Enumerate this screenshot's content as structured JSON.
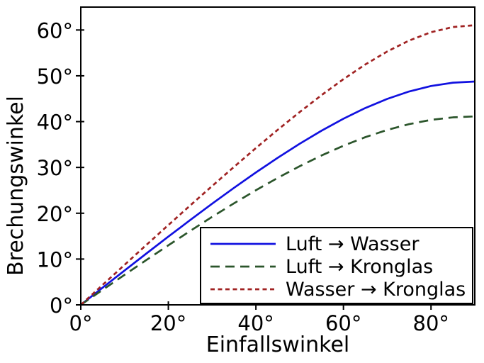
{
  "figure": {
    "background": "#ffffff",
    "frame_color": "#000000",
    "text_color": "#000000"
  },
  "chart_data": {
    "type": "line",
    "title": "",
    "xlabel": "Einfallswinkel",
    "ylabel": "Brechungswinkel",
    "xlim": [
      0,
      90
    ],
    "ylim": [
      0,
      65
    ],
    "x_ticks": [
      0,
      20,
      40,
      60,
      80
    ],
    "y_ticks": [
      0,
      10,
      20,
      30,
      40,
      50,
      60
    ],
    "tick_suffix": "°",
    "grid": false,
    "legend_position": "lower right",
    "x": [
      0,
      5,
      10,
      15,
      20,
      25,
      30,
      35,
      40,
      45,
      50,
      55,
      60,
      65,
      70,
      75,
      80,
      85,
      90
    ],
    "series": [
      {
        "name": "Luft → Wasser",
        "color": "#1111e0",
        "dash": null,
        "values": [
          0,
          3.76,
          7.5,
          11.22,
          14.9,
          18.52,
          22.08,
          25.55,
          28.9,
          32.12,
          35.17,
          38.02,
          40.63,
          42.97,
          44.96,
          46.58,
          47.77,
          48.5,
          48.75
        ]
      },
      {
        "name": "Luft → Kronglas",
        "color": "#2b552b",
        "dash": [
          13,
          8
        ],
        "values": [
          0,
          3.29,
          6.56,
          9.8,
          13.0,
          16.14,
          19.21,
          22.17,
          25.02,
          27.72,
          30.26,
          32.61,
          34.74,
          36.61,
          38.18,
          39.45,
          40.38,
          40.93,
          41.14
        ]
      },
      {
        "name": "Wasser → Kronglas",
        "color": "#a02222",
        "dash": [
          6,
          4.5
        ],
        "values": [
          0,
          4.37,
          8.74,
          13.1,
          17.42,
          21.71,
          25.94,
          30.12,
          34.23,
          38.23,
          42.08,
          45.79,
          49.27,
          52.48,
          55.31,
          57.7,
          59.51,
          60.65,
          61.04
        ]
      }
    ]
  }
}
